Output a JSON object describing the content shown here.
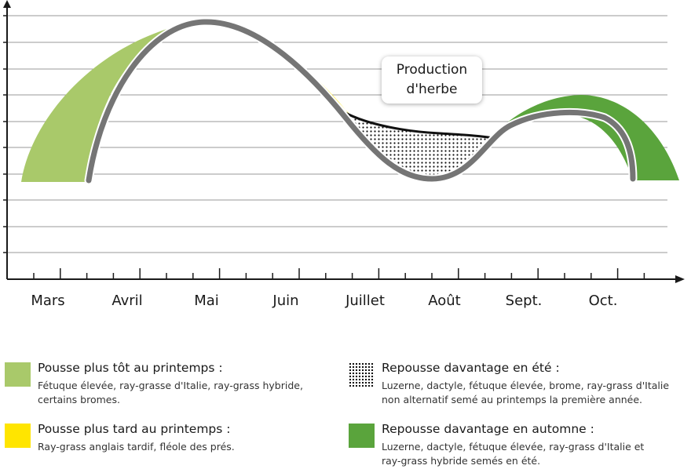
{
  "chart_data": {
    "type": "area",
    "title": "",
    "xlabel": "",
    "ylabel": "",
    "categories": [
      "Mars",
      "Avril",
      "Mai",
      "Juin",
      "Juillet",
      "Août",
      "Sept.",
      "Oct."
    ],
    "grid": true,
    "annotation": {
      "line1": "Production",
      "line2": "d'herbe"
    },
    "series": [
      {
        "name": "Pousse plus tôt au printemps",
        "color": "#a9c96a",
        "pattern": "solid"
      },
      {
        "name": "Pousse plus tard au printemps",
        "color": "#ffe500",
        "pattern": "solid"
      },
      {
        "name": "Repousse davantage en été",
        "color": "#111111",
        "pattern": "dots"
      },
      {
        "name": "Repousse davantage en automne",
        "color": "#5aa43c",
        "pattern": "solid"
      }
    ],
    "colors": {
      "baseline_curve": "#757575",
      "grid": "#9a9a9a",
      "axis": "#1a1a1a"
    }
  },
  "legend": [
    {
      "title": "Pousse plus tôt au printemps :",
      "desc1": "Fétuque élevée, ray-grasse d'Italie, ray-grass hybride,",
      "desc2": "certains bromes."
    },
    {
      "title": "Pousse plus tard au printemps :",
      "desc1": "Ray-grass anglais tardif, fléole des prés.",
      "desc2": ""
    },
    {
      "title": "Repousse davantage en été :",
      "desc1": "Luzerne, dactyle, fétuque élevée, brome, ray-grass d'Italie",
      "desc2": "non alternatif semé au printemps la première année."
    },
    {
      "title": "Repousse davantage en automne :",
      "desc1": "Luzerne, dactyle, fétuque élevée, ray-grass d'Italie et",
      "desc2": "ray-grass hybride semés en été."
    }
  ]
}
